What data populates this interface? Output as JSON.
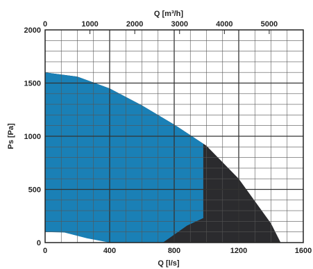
{
  "chart_data": {
    "type": "area",
    "title": "",
    "xlabel_bottom": "Q [l/s]",
    "xlabel_top": "Q [m³/h]",
    "ylabel": "Ps [Pa]",
    "xlim": [
      0,
      1600
    ],
    "ylim": [
      0,
      2000
    ],
    "x2lim": [
      0,
      5760
    ],
    "x_ticks": [
      0,
      400,
      800,
      1200,
      1600
    ],
    "x2_ticks": [
      0,
      1000,
      2000,
      3000,
      4000,
      5000
    ],
    "y_ticks": [
      0,
      500,
      1000,
      1500,
      2000
    ],
    "grid": true,
    "colors": {
      "outer_region": "#2b2b2e",
      "inner_region": "#1a80b6",
      "grid": "#555555",
      "frame": "#222222"
    },
    "series": [
      {
        "region": "outer",
        "x": [
          0,
          200,
          400,
          600,
          800,
          1000,
          1200,
          1400,
          1460,
          1460,
          720,
          720
        ],
        "y": [
          1600,
          1560,
          1450,
          1290,
          1110,
          910,
          600,
          180,
          0,
          0,
          0,
          0
        ]
      },
      {
        "region": "inner",
        "x": [
          0,
          200,
          400,
          600,
          800,
          980,
          980,
          880,
          730,
          400,
          260,
          120,
          0
        ],
        "y": [
          1600,
          1560,
          1450,
          1290,
          1110,
          930,
          230,
          160,
          0,
          0,
          40,
          95,
          100
        ]
      }
    ]
  }
}
